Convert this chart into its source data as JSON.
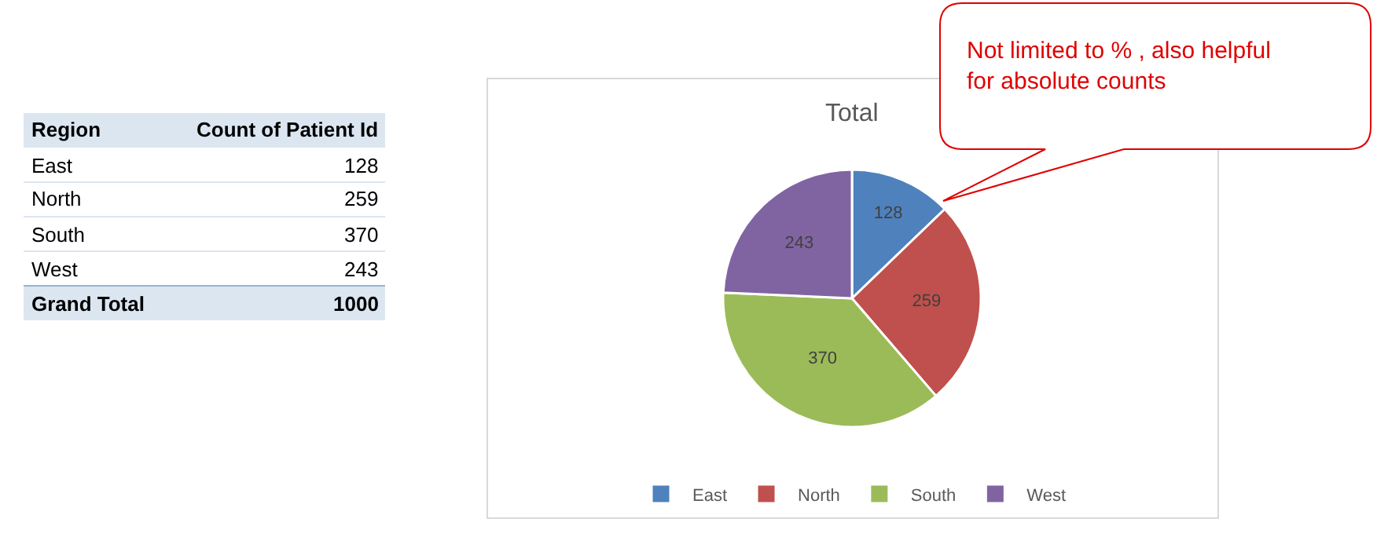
{
  "chart_data": [
    {
      "type": "other",
      "categories": [
        "East",
        "North",
        "South",
        "West"
      ],
      "values": [
        128,
        259,
        370,
        243
      ],
      "data_labels": true,
      "annotations": [
        "Region",
        "Count of Patient Id",
        "Grand Total",
        "1000"
      ]
    },
    {
      "type": "pie",
      "title": "Total",
      "categories": [
        "East",
        "North",
        "South",
        "West"
      ],
      "values": [
        128,
        259,
        370,
        243
      ],
      "colors": [
        "#4f81bd",
        "#c0504d",
        "#9bbb59",
        "#8064a2"
      ],
      "data_labels": true,
      "legend": "bottom",
      "annotations": [
        "Not limited to % , also helpful for absolute counts"
      ]
    }
  ]
}
